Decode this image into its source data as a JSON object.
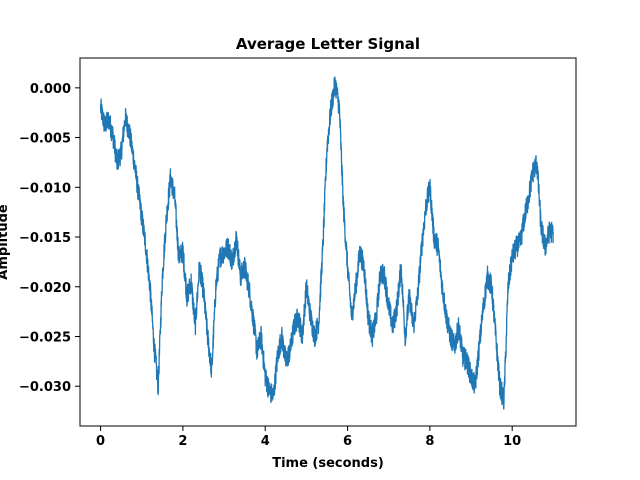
{
  "chart_data": {
    "type": "line",
    "title": "Average Letter Signal",
    "xlabel": "Time (seconds)",
    "ylabel": "Amplitude",
    "xlim": [
      -0.5,
      11.55
    ],
    "ylim": [
      -0.034,
      0.003
    ],
    "x_ticks": [
      0,
      2,
      4,
      6,
      8,
      10
    ],
    "x_tick_labels": [
      "0",
      "2",
      "4",
      "6",
      "8",
      "10"
    ],
    "y_ticks": [
      0.0,
      -0.005,
      -0.01,
      -0.015,
      -0.02,
      -0.025,
      -0.03
    ],
    "y_tick_labels": [
      "0.000",
      "−0.005",
      "−0.010",
      "−0.015",
      "−0.020",
      "−0.025",
      "−0.030"
    ],
    "grid": false,
    "series": [
      {
        "color": "#1f77b4",
        "x": [
          0.0,
          0.1,
          0.2,
          0.3,
          0.4,
          0.5,
          0.6,
          0.7,
          0.8,
          0.9,
          1.0,
          1.1,
          1.2,
          1.3,
          1.4,
          1.5,
          1.6,
          1.7,
          1.8,
          1.9,
          2.0,
          2.1,
          2.2,
          2.3,
          2.4,
          2.5,
          2.6,
          2.7,
          2.8,
          2.9,
          3.0,
          3.1,
          3.2,
          3.3,
          3.4,
          3.5,
          3.6,
          3.7,
          3.8,
          3.9,
          4.0,
          4.1,
          4.2,
          4.3,
          4.4,
          4.5,
          4.6,
          4.7,
          4.8,
          4.9,
          5.0,
          5.1,
          5.2,
          5.3,
          5.4,
          5.5,
          5.6,
          5.7,
          5.8,
          5.9,
          6.0,
          6.1,
          6.2,
          6.3,
          6.4,
          6.5,
          6.6,
          6.7,
          6.8,
          6.9,
          7.0,
          7.1,
          7.2,
          7.3,
          7.4,
          7.5,
          7.6,
          7.7,
          7.8,
          7.9,
          8.0,
          8.1,
          8.2,
          8.3,
          8.4,
          8.5,
          8.6,
          8.7,
          8.8,
          8.9,
          9.0,
          9.1,
          9.2,
          9.3,
          9.4,
          9.5,
          9.6,
          9.7,
          9.8,
          9.9,
          10.0,
          10.1,
          10.2,
          10.3,
          10.4,
          10.5,
          10.6,
          10.7,
          10.8,
          10.9,
          11.0
        ],
        "values": [
          -0.002,
          -0.0038,
          -0.0032,
          -0.0048,
          -0.0075,
          -0.0065,
          -0.003,
          -0.0045,
          -0.007,
          -0.01,
          -0.013,
          -0.016,
          -0.02,
          -0.026,
          -0.03,
          -0.019,
          -0.013,
          -0.009,
          -0.011,
          -0.017,
          -0.0165,
          -0.021,
          -0.0195,
          -0.024,
          -0.018,
          -0.0205,
          -0.025,
          -0.0285,
          -0.02,
          -0.017,
          -0.0165,
          -0.016,
          -0.0175,
          -0.015,
          -0.019,
          -0.018,
          -0.02,
          -0.023,
          -0.0265,
          -0.025,
          -0.029,
          -0.0305,
          -0.031,
          -0.027,
          -0.025,
          -0.0275,
          -0.0265,
          -0.024,
          -0.023,
          -0.025,
          -0.02,
          -0.023,
          -0.025,
          -0.0235,
          -0.016,
          -0.006,
          -0.002,
          0.0005,
          -0.002,
          -0.012,
          -0.018,
          -0.023,
          -0.02,
          -0.0165,
          -0.018,
          -0.023,
          -0.025,
          -0.023,
          -0.0185,
          -0.019,
          -0.022,
          -0.024,
          -0.022,
          -0.018,
          -0.025,
          -0.021,
          -0.024,
          -0.021,
          -0.016,
          -0.012,
          -0.01,
          -0.015,
          -0.016,
          -0.02,
          -0.023,
          -0.025,
          -0.026,
          -0.024,
          -0.027,
          -0.0275,
          -0.029,
          -0.03,
          -0.026,
          -0.022,
          -0.019,
          -0.02,
          -0.025,
          -0.03,
          -0.0315,
          -0.02,
          -0.017,
          -0.016,
          -0.0155,
          -0.013,
          -0.011,
          -0.0085,
          -0.0075,
          -0.014,
          -0.016,
          -0.0145,
          -0.0145
        ]
      }
    ]
  }
}
